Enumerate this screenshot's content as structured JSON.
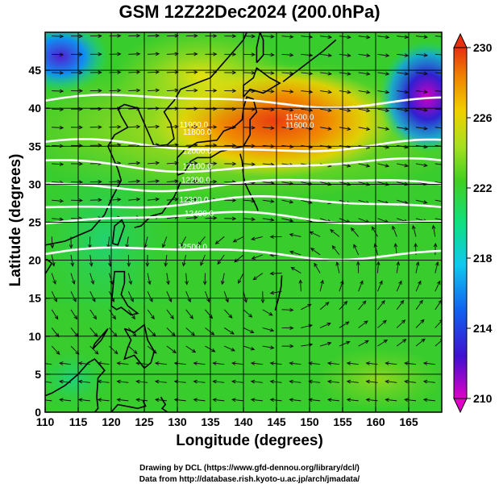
{
  "title": "GSM 12Z22Dec2024 (200.0hPa)",
  "xlabel": "Longitude (degrees)",
  "ylabel": "Latitude  (degrees)",
  "credits": [
    "Drawing by DCL (https://www.gfd-dennou.org/library/dcl/)",
    "Data from http://database.rish.kyoto-u.ac.jp/arch/jmadata/"
  ],
  "chart_data": {
    "type": "heatmap",
    "variable": "temperature with geopotential height contours and wind vectors",
    "xlim": [
      110,
      170
    ],
    "ylim": [
      0,
      50
    ],
    "x_ticks": [
      110,
      115,
      120,
      125,
      130,
      135,
      140,
      145,
      150,
      155,
      160,
      165
    ],
    "y_ticks": [
      0,
      5,
      10,
      15,
      20,
      25,
      30,
      35,
      40,
      45
    ],
    "colorbar": {
      "min": 210,
      "max": 230,
      "ticks": [
        210,
        214,
        218,
        222,
        226,
        230
      ]
    },
    "height_contours": [
      {
        "label": "11900.0",
        "lat": 41
      },
      {
        "label": "12000.0",
        "lat": 35
      },
      {
        "label": "12100.0",
        "lat": 32.5
      },
      {
        "label": "12200.0",
        "lat": 30
      },
      {
        "label": "12300.0",
        "lat": 27.5
      },
      {
        "label": "12400.0",
        "lat": 25.5
      },
      {
        "label": "12500.0",
        "lat": 21
      }
    ],
    "contour_labels": [
      {
        "text": "11900.0",
        "lon": 132.5,
        "lat": 37.5
      },
      {
        "text": "11800.0",
        "lon": 133.0,
        "lat": 36.5
      },
      {
        "text": "11500.0",
        "lon": 148.5,
        "lat": 38.5
      },
      {
        "text": "11600.0",
        "lon": 148.5,
        "lat": 37.4
      },
      {
        "text": "12000.0",
        "lon": 133.0,
        "lat": 34.0
      },
      {
        "text": "12100.0",
        "lon": 133.0,
        "lat": 32.0
      },
      {
        "text": "12200.0",
        "lon": 132.8,
        "lat": 30.2
      },
      {
        "text": "12300.0",
        "lon": 132.5,
        "lat": 27.6
      },
      {
        "text": "12400.0",
        "lon": 133.3,
        "lat": 25.8
      },
      {
        "text": "12500.0",
        "lon": 132.3,
        "lat": 21.4
      }
    ]
  }
}
